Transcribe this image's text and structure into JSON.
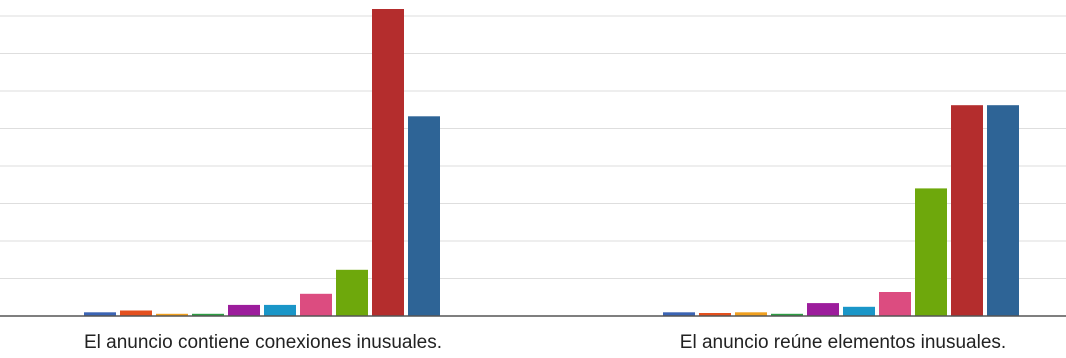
{
  "chart_data": {
    "type": "bar",
    "title": "",
    "xlabel": "",
    "ylabel": "",
    "categories": [
      "El anuncio contiene conexiones inusuales.",
      "El anuncio reúne elementos inusuales."
    ],
    "ylim": [
      0,
      8.4
    ],
    "grid": true,
    "legend": "none",
    "series": [
      {
        "color": "#3b64b4",
        "values": [
          0.1,
          0.1
        ]
      },
      {
        "color": "#e4501e",
        "values": [
          0.15,
          0.08
        ]
      },
      {
        "color": "#f0a020",
        "values": [
          0.06,
          0.1
        ]
      },
      {
        "color": "#2e9e44",
        "values": [
          0.06,
          0.06
        ]
      },
      {
        "color": "#9c1d9c",
        "values": [
          0.3,
          0.35
        ]
      },
      {
        "color": "#1a96c8",
        "values": [
          0.3,
          0.25
        ]
      },
      {
        "color": "#dc4c80",
        "values": [
          0.6,
          0.65
        ]
      },
      {
        "color": "#6ea80c",
        "values": [
          1.25,
          3.45
        ]
      },
      {
        "color": "#b42d2d",
        "values": [
          8.3,
          5.7
        ]
      },
      {
        "color": "#2e6496",
        "values": [
          5.4,
          5.7
        ]
      }
    ]
  }
}
